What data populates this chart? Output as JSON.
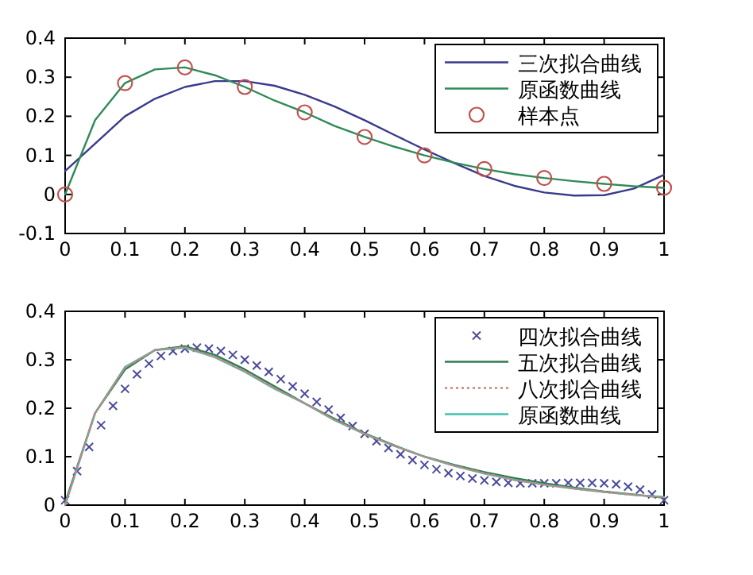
{
  "chart_data": [
    {
      "type": "line",
      "x": [
        0,
        0.05,
        0.1,
        0.15,
        0.2,
        0.25,
        0.3,
        0.35,
        0.4,
        0.45,
        0.5,
        0.55,
        0.6,
        0.65,
        0.7,
        0.75,
        0.8,
        0.85,
        0.9,
        0.95,
        1
      ],
      "xlim": [
        0,
        1
      ],
      "ylim": [
        -0.1,
        0.4
      ],
      "xticks": [
        0,
        0.1,
        0.2,
        0.3,
        0.4,
        0.5,
        0.6,
        0.7,
        0.8,
        0.9,
        1
      ],
      "yticks": [
        -0.1,
        0,
        0.1,
        0.2,
        0.3,
        0.4
      ],
      "grid": false,
      "legend": "top right",
      "series": [
        {
          "name": "三次拟合曲线",
          "color": "#3a3a8c",
          "values": [
            0.06,
            0.13,
            0.2,
            0.245,
            0.275,
            0.29,
            0.29,
            0.278,
            0.255,
            0.225,
            0.19,
            0.152,
            0.115,
            0.08,
            0.047,
            0.022,
            0.005,
            -0.003,
            -0.002,
            0.015,
            0.05
          ]
        },
        {
          "name": "原函数曲线",
          "color": "#2e8b57",
          "values": [
            0,
            0.19,
            0.285,
            0.32,
            0.325,
            0.305,
            0.275,
            0.24,
            0.21,
            0.175,
            0.147,
            0.122,
            0.1,
            0.081,
            0.065,
            0.052,
            0.042,
            0.034,
            0.027,
            0.021,
            0.017
          ]
        },
        {
          "name": "样本点",
          "type": "scatter",
          "marker": "circle",
          "color": "#c0504d",
          "x": [
            0,
            0.1,
            0.2,
            0.3,
            0.4,
            0.5,
            0.6,
            0.7,
            0.8,
            0.9,
            1
          ],
          "values": [
            0,
            0.285,
            0.325,
            0.275,
            0.21,
            0.147,
            0.1,
            0.065,
            0.042,
            0.027,
            0.017
          ]
        }
      ]
    },
    {
      "type": "line",
      "x": [
        0,
        0.05,
        0.1,
        0.15,
        0.2,
        0.25,
        0.3,
        0.35,
        0.4,
        0.45,
        0.5,
        0.55,
        0.6,
        0.65,
        0.7,
        0.75,
        0.8,
        0.85,
        0.9,
        0.95,
        1
      ],
      "xlim": [
        0,
        1
      ],
      "ylim": [
        0,
        0.4
      ],
      "xticks": [
        0,
        0.1,
        0.2,
        0.3,
        0.4,
        0.5,
        0.6,
        0.7,
        0.8,
        0.9,
        1
      ],
      "yticks": [
        0,
        0.1,
        0.2,
        0.3,
        0.4
      ],
      "grid": false,
      "legend": "top right",
      "series": [
        {
          "name": "四次拟合曲线",
          "type": "scatter",
          "marker": "cross",
          "color": "#4a4a9a",
          "x": [
            0,
            0.02,
            0.04,
            0.06,
            0.08,
            0.1,
            0.12,
            0.14,
            0.16,
            0.18,
            0.2,
            0.22,
            0.24,
            0.26,
            0.28,
            0.3,
            0.32,
            0.34,
            0.36,
            0.38,
            0.4,
            0.42,
            0.44,
            0.46,
            0.48,
            0.5,
            0.52,
            0.54,
            0.56,
            0.58,
            0.6,
            0.62,
            0.64,
            0.66,
            0.68,
            0.7,
            0.72,
            0.74,
            0.76,
            0.78,
            0.8,
            0.82,
            0.84,
            0.86,
            0.88,
            0.9,
            0.92,
            0.94,
            0.96,
            0.98,
            1
          ],
          "values": [
            0.01,
            0.07,
            0.12,
            0.165,
            0.205,
            0.24,
            0.27,
            0.292,
            0.308,
            0.318,
            0.323,
            0.325,
            0.323,
            0.318,
            0.31,
            0.3,
            0.288,
            0.275,
            0.26,
            0.245,
            0.23,
            0.213,
            0.197,
            0.18,
            0.163,
            0.147,
            0.132,
            0.118,
            0.105,
            0.093,
            0.083,
            0.074,
            0.066,
            0.06,
            0.055,
            0.051,
            0.048,
            0.046,
            0.045,
            0.045,
            0.045,
            0.045,
            0.046,
            0.046,
            0.046,
            0.045,
            0.043,
            0.038,
            0.032,
            0.022,
            0.01
          ]
        },
        {
          "name": "五次拟合曲线",
          "color": "#2e7d4f",
          "values": [
            0.005,
            0.19,
            0.28,
            0.32,
            0.328,
            0.31,
            0.28,
            0.245,
            0.21,
            0.178,
            0.148,
            0.123,
            0.1,
            0.083,
            0.068,
            0.056,
            0.045,
            0.036,
            0.028,
            0.022,
            0.015
          ]
        },
        {
          "name": "八次拟合曲线",
          "color": "#d08080",
          "line_style": "dotted",
          "values": [
            0,
            0.19,
            0.284,
            0.32,
            0.326,
            0.306,
            0.276,
            0.241,
            0.21,
            0.176,
            0.147,
            0.122,
            0.1,
            0.081,
            0.066,
            0.052,
            0.042,
            0.034,
            0.027,
            0.021,
            0.016
          ]
        },
        {
          "name": "原函数曲线",
          "color": "#40c0b0",
          "values": [
            0,
            0.19,
            0.285,
            0.32,
            0.325,
            0.305,
            0.275,
            0.24,
            0.21,
            0.175,
            0.147,
            0.122,
            0.1,
            0.081,
            0.065,
            0.052,
            0.042,
            0.034,
            0.027,
            0.021,
            0.017
          ]
        }
      ]
    }
  ]
}
